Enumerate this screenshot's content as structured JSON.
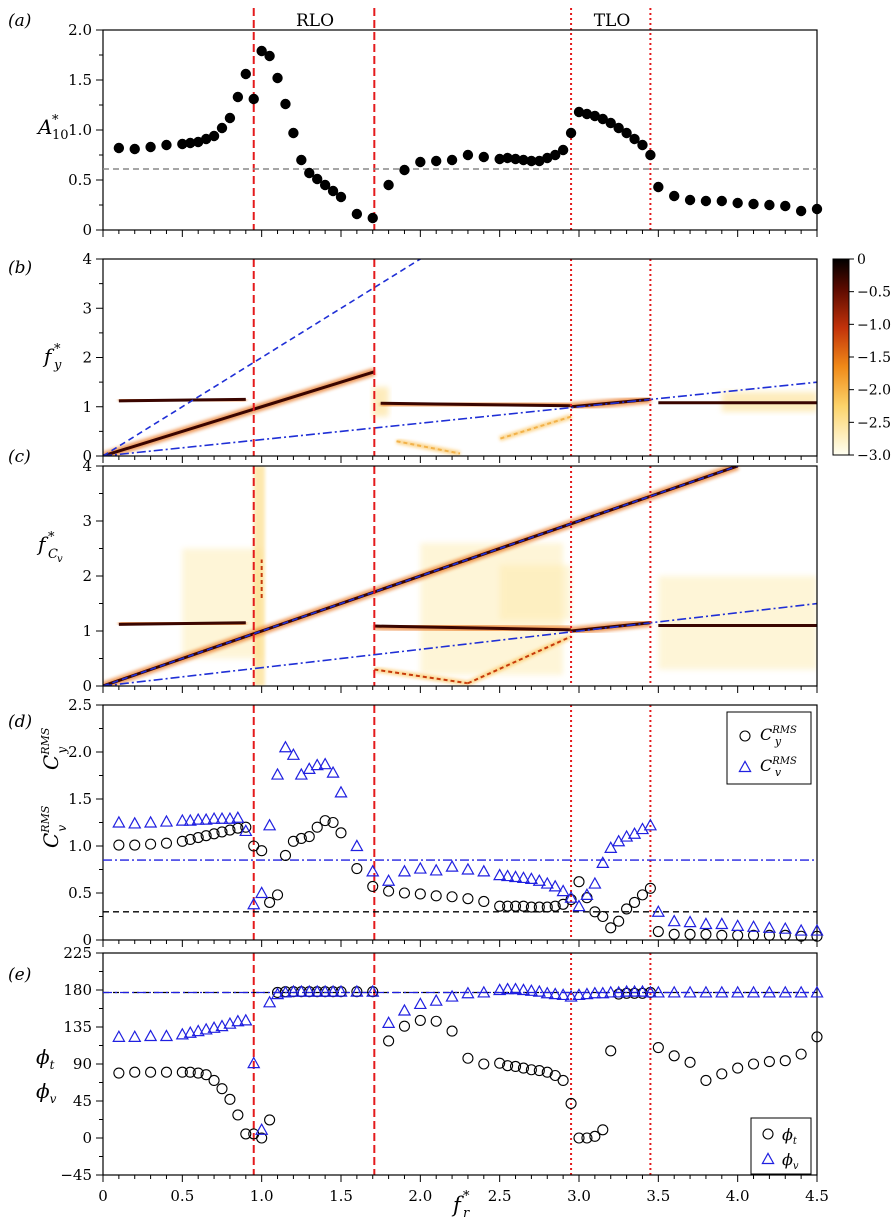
{
  "panel_labels": [
    "(a)",
    "(b)",
    "(c)",
    "(d)",
    "(e)"
  ],
  "region_labels": [
    "RLO",
    "TLO"
  ],
  "colorbar": {
    "ticks": [
      "0",
      "−0.5",
      "−1.0",
      "−1.5",
      "−2.0",
      "−2.5",
      "−3.0"
    ],
    "range": [
      -3,
      0
    ]
  },
  "x_axis": {
    "label": "f",
    "label_sup": "*",
    "label_sub": "r",
    "ticks": [
      "0",
      "0.5",
      "1.0",
      "1.5",
      "2.0",
      "2.5",
      "3.0",
      "3.5",
      "4.0",
      "4.5"
    ],
    "range": [
      0,
      4.5
    ]
  },
  "vlines": {
    "dashed": [
      0.95,
      1.71
    ],
    "dotted": [
      2.95,
      3.45
    ]
  },
  "chart_data": [
    {
      "type": "scatter",
      "panel": "a",
      "ylabel": "A*10",
      "ylim": [
        0,
        2.0
      ],
      "yticks": [
        "0",
        "0.5",
        "1.0",
        "1.5",
        "2.0"
      ],
      "hline": 0.61,
      "series": [
        {
          "x": [
            0.1,
            0.2,
            0.3,
            0.4,
            0.5,
            0.55,
            0.6,
            0.65,
            0.7,
            0.75,
            0.8,
            0.85,
            0.9,
            0.95,
            1.0,
            1.05,
            1.1,
            1.15,
            1.2,
            1.25,
            1.3,
            1.35,
            1.4,
            1.45,
            1.5,
            1.6,
            1.7,
            1.8,
            1.9,
            2.0,
            2.1,
            2.2,
            2.3,
            2.4,
            2.5,
            2.55,
            2.6,
            2.65,
            2.7,
            2.75,
            2.8,
            2.85,
            2.9,
            2.95,
            3.0,
            3.05,
            3.1,
            3.15,
            3.2,
            3.25,
            3.3,
            3.35,
            3.4,
            3.45,
            3.5,
            3.6,
            3.7,
            3.8,
            3.9,
            4.0,
            4.1,
            4.2,
            4.3,
            4.4,
            4.5
          ],
          "y": [
            0.82,
            0.81,
            0.83,
            0.85,
            0.86,
            0.87,
            0.88,
            0.91,
            0.94,
            1.02,
            1.12,
            1.33,
            1.56,
            1.31,
            1.79,
            1.74,
            1.52,
            1.26,
            0.97,
            0.7,
            0.57,
            0.51,
            0.45,
            0.39,
            0.33,
            0.16,
            0.12,
            0.45,
            0.6,
            0.68,
            0.69,
            0.7,
            0.75,
            0.73,
            0.71,
            0.72,
            0.71,
            0.7,
            0.69,
            0.69,
            0.72,
            0.75,
            0.8,
            0.97,
            1.18,
            1.16,
            1.14,
            1.11,
            1.07,
            1.02,
            0.97,
            0.91,
            0.85,
            0.75,
            0.43,
            0.34,
            0.3,
            0.29,
            0.29,
            0.27,
            0.26,
            0.25,
            0.24,
            0.19,
            0.21
          ]
        }
      ]
    },
    {
      "type": "heatmap",
      "panel": "b",
      "ylabel": "f*y",
      "ylim": [
        0,
        4
      ],
      "yticks": [
        "0",
        "1",
        "2",
        "3",
        "4"
      ],
      "ridges": [
        {
          "x": [
            0.1,
            0.9
          ],
          "y": [
            1.12,
            1.15
          ]
        },
        {
          "x": [
            0.0,
            1.71
          ],
          "y": [
            0.0,
            1.71
          ]
        },
        {
          "x": [
            1.75,
            2.95
          ],
          "y": [
            1.07,
            1.02
          ]
        },
        {
          "x": [
            2.95,
            3.45
          ],
          "y": [
            1.0,
            1.15
          ]
        },
        {
          "x": [
            3.5,
            4.5
          ],
          "y": [
            1.08,
            1.08
          ]
        },
        {
          "x": [
            2.95,
            2.5
          ],
          "y": [
            0.8,
            0.35
          ],
          "intensity": 0.3
        },
        {
          "x": [
            1.85,
            2.25
          ],
          "y": [
            0.3,
            0.05
          ],
          "intensity": 0.3
        }
      ],
      "reference_lines": {
        "dashed_slope": 2,
        "dashdot_slope": 0.333
      }
    },
    {
      "type": "heatmap",
      "panel": "c",
      "ylabel": "f*Cv",
      "ylim": [
        0,
        4
      ],
      "yticks": [
        "0",
        "1",
        "2",
        "3",
        "4"
      ],
      "ridges": [
        {
          "x": [
            0.1,
            0.9
          ],
          "y": [
            1.12,
            1.15
          ]
        },
        {
          "x": [
            0.0,
            3.45
          ],
          "y": [
            0.0,
            3.45
          ]
        },
        {
          "x": [
            3.45,
            4.0
          ],
          "y": [
            3.45,
            4.0
          ]
        },
        {
          "x": [
            1.71,
            2.95
          ],
          "y": [
            1.09,
            1.02
          ]
        },
        {
          "x": [
            2.95,
            3.45
          ],
          "y": [
            1.0,
            1.15
          ]
        },
        {
          "x": [
            3.5,
            4.5
          ],
          "y": [
            1.1,
            1.1
          ]
        },
        {
          "x": [
            1.71,
            2.3
          ],
          "y": [
            0.3,
            0.05
          ],
          "intensity": 0.8
        },
        {
          "x": [
            2.3,
            2.95
          ],
          "y": [
            0.05,
            0.9
          ],
          "intensity": 0.8
        },
        {
          "x": [
            1.0,
            1.0
          ],
          "y": [
            1.6,
            2.3
          ],
          "intensity": 0.8
        }
      ],
      "reference_lines": {
        "dashed_slope": 1,
        "dashdot_slope": 0.333
      }
    },
    {
      "type": "scatter",
      "panel": "d",
      "ylabel": [
        "C^RMS_v",
        "C^RMS_y"
      ],
      "ylim": [
        0,
        2.5
      ],
      "yticks": [
        "0",
        "0.5",
        "1.0",
        "1.5",
        "2.0",
        "2.5"
      ],
      "hlines": {
        "black": 0.3,
        "blue": 0.85
      },
      "legend": [
        "C^RMS_y",
        "C^RMS_v"
      ],
      "series": [
        {
          "name": "C^RMS_y",
          "marker": "circle",
          "x": [
            0.1,
            0.2,
            0.3,
            0.4,
            0.5,
            0.55,
            0.6,
            0.65,
            0.7,
            0.75,
            0.8,
            0.85,
            0.9,
            0.95,
            1.0,
            1.05,
            1.1,
            1.15,
            1.2,
            1.25,
            1.3,
            1.35,
            1.4,
            1.45,
            1.5,
            1.6,
            1.7,
            1.8,
            1.9,
            2.0,
            2.1,
            2.2,
            2.3,
            2.4,
            2.5,
            2.55,
            2.6,
            2.65,
            2.7,
            2.75,
            2.8,
            2.85,
            2.9,
            2.95,
            3.0,
            3.05,
            3.1,
            3.15,
            3.2,
            3.25,
            3.3,
            3.35,
            3.4,
            3.45,
            3.5,
            3.6,
            3.7,
            3.8,
            3.9,
            4.0,
            4.1,
            4.2,
            4.3,
            4.4,
            4.5
          ],
          "y": [
            1.01,
            1.01,
            1.02,
            1.03,
            1.05,
            1.07,
            1.09,
            1.11,
            1.13,
            1.15,
            1.17,
            1.19,
            1.2,
            1.0,
            0.95,
            0.4,
            0.48,
            0.9,
            1.05,
            1.08,
            1.1,
            1.2,
            1.27,
            1.25,
            1.14,
            0.76,
            0.57,
            0.52,
            0.5,
            0.49,
            0.47,
            0.46,
            0.44,
            0.41,
            0.36,
            0.36,
            0.36,
            0.36,
            0.35,
            0.35,
            0.35,
            0.36,
            0.38,
            0.43,
            0.62,
            0.45,
            0.3,
            0.25,
            0.13,
            0.2,
            0.33,
            0.4,
            0.48,
            0.55,
            0.09,
            0.06,
            0.06,
            0.06,
            0.05,
            0.05,
            0.05,
            0.05,
            0.05,
            0.04,
            0.04
          ]
        },
        {
          "name": "C^RMS_v",
          "marker": "triangle",
          "x": [
            0.1,
            0.2,
            0.3,
            0.4,
            0.5,
            0.55,
            0.6,
            0.65,
            0.7,
            0.75,
            0.8,
            0.85,
            0.9,
            0.95,
            1.0,
            1.05,
            1.1,
            1.15,
            1.2,
            1.25,
            1.3,
            1.35,
            1.4,
            1.45,
            1.5,
            1.6,
            1.7,
            1.8,
            1.9,
            2.0,
            2.1,
            2.2,
            2.3,
            2.4,
            2.5,
            2.55,
            2.6,
            2.65,
            2.7,
            2.75,
            2.8,
            2.85,
            2.9,
            2.95,
            3.0,
            3.05,
            3.1,
            3.15,
            3.2,
            3.25,
            3.3,
            3.35,
            3.4,
            3.45,
            3.5,
            3.6,
            3.7,
            3.8,
            3.9,
            4.0,
            4.1,
            4.2,
            4.3,
            4.4,
            4.5
          ],
          "y": [
            1.25,
            1.24,
            1.25,
            1.26,
            1.27,
            1.27,
            1.28,
            1.28,
            1.29,
            1.29,
            1.29,
            1.3,
            1.16,
            0.38,
            0.5,
            1.22,
            1.76,
            2.05,
            1.97,
            1.76,
            1.82,
            1.86,
            1.87,
            1.78,
            1.57,
            1.0,
            0.73,
            0.63,
            0.73,
            0.76,
            0.74,
            0.78,
            0.75,
            0.73,
            0.69,
            0.68,
            0.67,
            0.66,
            0.65,
            0.63,
            0.6,
            0.57,
            0.52,
            0.45,
            0.36,
            0.48,
            0.6,
            0.82,
            0.98,
            1.05,
            1.1,
            1.13,
            1.18,
            1.22,
            0.3,
            0.2,
            0.19,
            0.17,
            0.17,
            0.15,
            0.14,
            0.13,
            0.12,
            0.1,
            0.1
          ]
        }
      ]
    },
    {
      "type": "scatter",
      "panel": "e",
      "ylabel": [
        "ϕt",
        "ϕv"
      ],
      "ylim": [
        -45,
        225
      ],
      "yticks": [
        "−45",
        "0",
        "45",
        "90",
        "135",
        "180",
        "225"
      ],
      "hline": 177,
      "legend": [
        "ϕt",
        "ϕv"
      ],
      "series": [
        {
          "name": "ϕt",
          "marker": "circle",
          "x": [
            0.1,
            0.2,
            0.3,
            0.4,
            0.5,
            0.55,
            0.6,
            0.65,
            0.7,
            0.75,
            0.8,
            0.85,
            0.9,
            0.95,
            1.0,
            1.05,
            1.1,
            1.15,
            1.2,
            1.25,
            1.3,
            1.35,
            1.4,
            1.45,
            1.5,
            1.6,
            1.7,
            1.8,
            1.9,
            2.0,
            2.1,
            2.2,
            2.3,
            2.4,
            2.5,
            2.55,
            2.6,
            2.65,
            2.7,
            2.75,
            2.8,
            2.85,
            2.9,
            2.95,
            3.0,
            3.05,
            3.1,
            3.15,
            3.2,
            3.25,
            3.3,
            3.35,
            3.4,
            3.45,
            3.5,
            3.6,
            3.7,
            3.8,
            3.9,
            4.0,
            4.1,
            4.2,
            4.3,
            4.4,
            4.5
          ],
          "y": [
            79,
            80,
            80,
            80,
            80,
            80,
            79,
            77,
            70,
            60,
            47,
            28,
            5,
            5,
            0,
            22,
            177,
            178,
            178,
            178,
            178,
            178,
            178,
            178,
            178,
            178,
            178,
            118,
            136,
            143,
            142,
            130,
            97,
            90,
            91,
            88,
            87,
            85,
            83,
            82,
            80,
            76,
            70,
            42,
            0,
            0,
            2,
            10,
            106,
            175,
            176,
            176,
            176,
            177,
            110,
            100,
            92,
            70,
            78,
            85,
            90,
            93,
            94,
            102,
            123
          ]
        },
        {
          "name": "ϕv",
          "marker": "triangle",
          "x": [
            0.1,
            0.2,
            0.3,
            0.4,
            0.5,
            0.55,
            0.6,
            0.65,
            0.7,
            0.75,
            0.8,
            0.85,
            0.9,
            0.95,
            1.0,
            1.05,
            1.1,
            1.15,
            1.2,
            1.25,
            1.3,
            1.35,
            1.4,
            1.45,
            1.5,
            1.6,
            1.7,
            1.8,
            1.9,
            2.0,
            2.1,
            2.2,
            2.3,
            2.4,
            2.5,
            2.55,
            2.6,
            2.65,
            2.7,
            2.75,
            2.8,
            2.85,
            2.9,
            2.95,
            3.0,
            3.05,
            3.1,
            3.15,
            3.2,
            3.25,
            3.3,
            3.35,
            3.4,
            3.45,
            3.5,
            3.6,
            3.7,
            3.8,
            3.9,
            4.0,
            4.1,
            4.2,
            4.3,
            4.4,
            4.5
          ],
          "y": [
            123,
            123,
            124,
            124,
            126,
            128,
            130,
            132,
            134,
            136,
            139,
            142,
            143,
            91,
            10,
            165,
            175,
            177,
            178,
            178,
            178,
            178,
            178,
            178,
            178,
            178,
            178,
            140,
            155,
            163,
            167,
            172,
            176,
            177,
            180,
            181,
            181,
            180,
            179,
            178,
            176,
            175,
            174,
            172,
            174,
            175,
            176,
            176,
            177,
            177,
            178,
            178,
            178,
            177,
            177,
            177,
            177,
            177,
            177,
            177,
            177,
            177,
            177,
            177,
            177
          ]
        }
      ]
    }
  ]
}
